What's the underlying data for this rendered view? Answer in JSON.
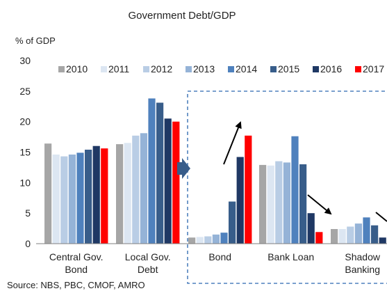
{
  "chart_data": {
    "type": "bar",
    "title": "Government  Debt/GDP",
    "ylabel": "% of GDP",
    "xlabel": "",
    "ylim": [
      0,
      30
    ],
    "yticks": [
      "0",
      "5",
      "10",
      "15",
      "20",
      "25",
      "30"
    ],
    "ytick_values": [
      0,
      5,
      10,
      15,
      20,
      25,
      30
    ],
    "categories": [
      [
        "Central Gov.",
        "Bond"
      ],
      [
        "Local Gov.",
        "Debt"
      ],
      [
        "Bond"
      ],
      [
        "Bank Loan"
      ],
      [
        "Shadow",
        "Banking"
      ]
    ],
    "series": [
      {
        "name": "2010",
        "color": "#a6a6a6",
        "values": [
          16.4,
          16.3,
          1.0,
          12.9,
          2.4
        ]
      },
      {
        "name": "2011",
        "color": "#dce6f2",
        "values": [
          14.6,
          16.5,
          1.1,
          12.8,
          2.4
        ]
      },
      {
        "name": "2012",
        "color": "#b9cde5",
        "values": [
          14.3,
          17.7,
          1.2,
          13.5,
          2.8
        ]
      },
      {
        "name": "2013",
        "color": "#95b3d7",
        "values": [
          14.6,
          18.1,
          1.5,
          13.3,
          3.3
        ]
      },
      {
        "name": "2014",
        "color": "#4f81bd",
        "values": [
          14.9,
          23.8,
          1.8,
          17.6,
          4.3
        ]
      },
      {
        "name": "2015",
        "color": "#385d8a",
        "values": [
          15.4,
          23.1,
          6.9,
          13.0,
          3.0
        ]
      },
      {
        "name": "2016",
        "color": "#1f3864",
        "values": [
          16.0,
          20.5,
          14.2,
          5.0,
          1.0
        ]
      },
      {
        "name": "2017",
        "color": "#ff0000",
        "values": [
          15.6,
          20.0,
          17.7,
          1.9,
          0.2
        ]
      }
    ],
    "legend_labels": [
      "2010",
      "2011",
      "2012",
      "2013",
      "2014",
      "2015",
      "2016",
      "2017"
    ],
    "legend_position": "top",
    "grid": false,
    "annotations": {
      "highlight_box": "dashed box around Bond, Bank Loan, Shadow Banking",
      "arrows": [
        "up over Bond",
        "down over Bank Loan",
        "down over Shadow Banking",
        "right pointing into box"
      ]
    },
    "source": "Source: NBS, PBC, CMOF, AMRO"
  }
}
